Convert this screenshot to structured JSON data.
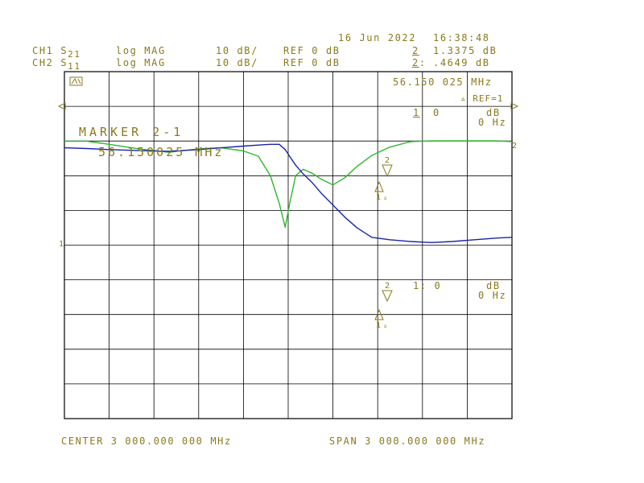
{
  "header": {
    "date": "16 Jun 2022",
    "time": "16:38:48",
    "ch1": {
      "label": "CH1",
      "param": "S",
      "sub": "21",
      "format": "log MAG",
      "scale": "10 dB/",
      "ref": "REF 0 dB",
      "marker_num": "2",
      "marker_val": "1.3375 dB"
    },
    "ch2": {
      "label": "CH2",
      "param": "S",
      "sub": "11",
      "format": "log MAG",
      "scale": "10 dB/",
      "ref": "REF 0 dB",
      "marker_num": "2",
      "marker_val": ".4649 dB"
    }
  },
  "marker_readout": {
    "freq": "56.150 025 MHz",
    "ref": "▵ REF=1",
    "ch1_line1": "1",
    "ch1_line2": "0",
    "ch1_unit_db": "dB",
    "ch1_unit_hz": "0 Hz",
    "ch2_line": "1: 0",
    "ch2_unit_db": "dB",
    "ch2_unit_hz": "0 Hz"
  },
  "annotation": {
    "title": "MARKER 2-1",
    "freq": "56.150025 MHz"
  },
  "footer": {
    "center": "CENTER 3 000.000 000 MHz",
    "span": "SPAN 3 000.000 000 MHz"
  },
  "colors": {
    "grid": "#000000",
    "text": "#8a7a1e",
    "s21_trace": "#2db82d",
    "s11_trace": "#1a24a8"
  },
  "chart_data": {
    "type": "line",
    "title": "",
    "xlabel": "",
    "ylabel": "",
    "x_range_mhz": [
      1500,
      4500
    ],
    "ref_db": 0,
    "scale_db_per_div": 10,
    "grid": true,
    "x": [
      1500,
      1650,
      1800,
      2000,
      2200,
      2400,
      2550,
      2700,
      2800,
      2880,
      2940,
      2980,
      3010,
      3050,
      3100,
      3160,
      3220,
      3300,
      3380,
      3460,
      3560,
      3680,
      3820,
      3960,
      4100,
      4250,
      4400,
      4500
    ],
    "series": [
      {
        "values": [
          -0.1,
          -0.1,
          -1.0,
          -2.3,
          -3.3,
          -2.3,
          -2.0,
          -2.9,
          -4.4,
          -10.0,
          -18.0,
          -24.9,
          -18.0,
          -10.0,
          -8.2,
          -9.3,
          -11.0,
          -12.7,
          -10.6,
          -7.4,
          -4.2,
          -1.8,
          -0.2,
          0.0,
          0.0,
          0.0,
          0.0,
          -0.2
        ]
      },
      {
        "values": [
          -2.0,
          -2.2,
          -2.5,
          -2.8,
          -3.0,
          -2.5,
          -2.0,
          -1.5,
          -1.2,
          -1.0,
          -1.0,
          -2.5,
          -4.5,
          -7.0,
          -9.5,
          -12.0,
          -15.0,
          -18.5,
          -22.0,
          -25.0,
          -27.8,
          -28.5,
          -29.0,
          -29.3,
          -29.0,
          -28.5,
          -28.0,
          -27.8
        ]
      }
    ]
  }
}
